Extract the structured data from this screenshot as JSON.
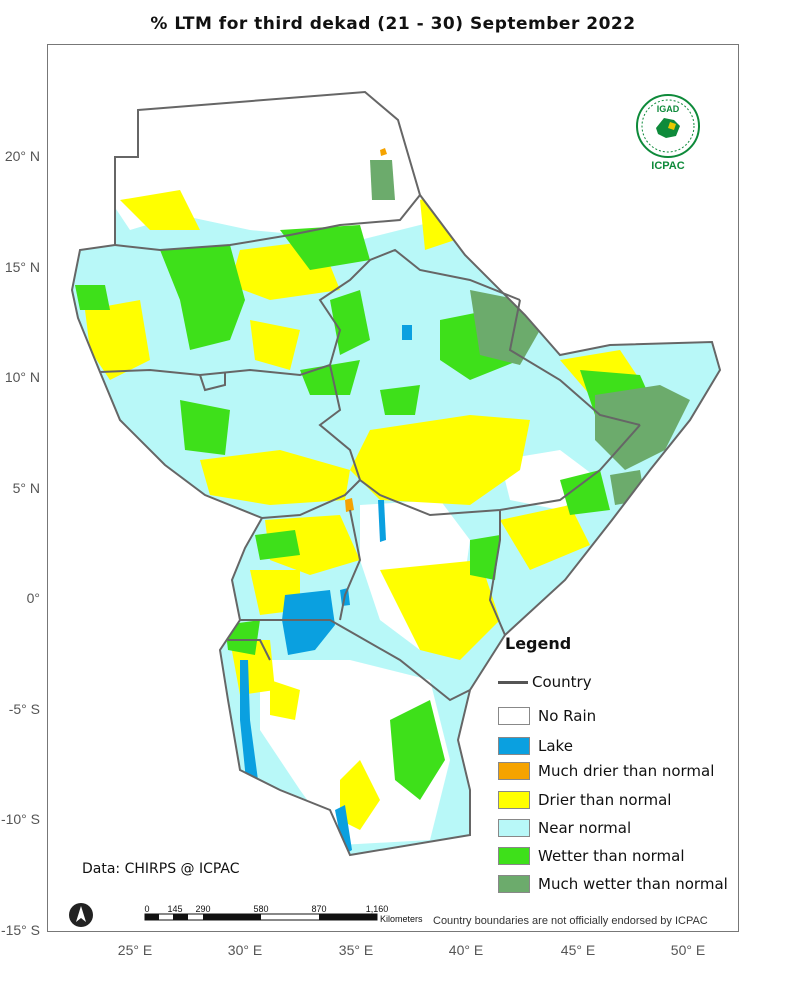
{
  "title": "% LTM  for  third  dekad (21 - 30)  September 2022",
  "latitude_ticks": [
    "20° N",
    "15° N",
    "10° N",
    "5° N",
    "0°",
    "-5° S",
    "-10° S",
    "-15° S"
  ],
  "longitude_ticks": [
    "25° E",
    "30° E",
    "35° E",
    "40° E",
    "45° E",
    "50° E"
  ],
  "legend": {
    "title": "Legend",
    "country_label": "Country",
    "items": [
      {
        "label": "No Rain",
        "color": "#ffffff"
      },
      {
        "label": "Lake",
        "color": "#0aa0e0"
      },
      {
        "label": "Much drier than normal",
        "color": "#f5a300"
      },
      {
        "label": "Drier than normal",
        "color": "#ffff00"
      },
      {
        "label": "Near normal",
        "color": "#b8f8f8"
      },
      {
        "label": "Wetter than normal",
        "color": "#3ee01a"
      },
      {
        "label": "Much wetter than normal",
        "color": "#6cab6c"
      }
    ]
  },
  "source": "Data: CHIRPS @ ICPAC",
  "disclaimer": "Country boundaries are not officially endorsed by ICPAC",
  "scale_bar": {
    "labels": [
      "0",
      "145",
      "290",
      "580",
      "870",
      "1,160"
    ],
    "unit": "Kilometers"
  },
  "logo": {
    "top_text": "IGAD",
    "bottom_text": "ICPAC"
  }
}
